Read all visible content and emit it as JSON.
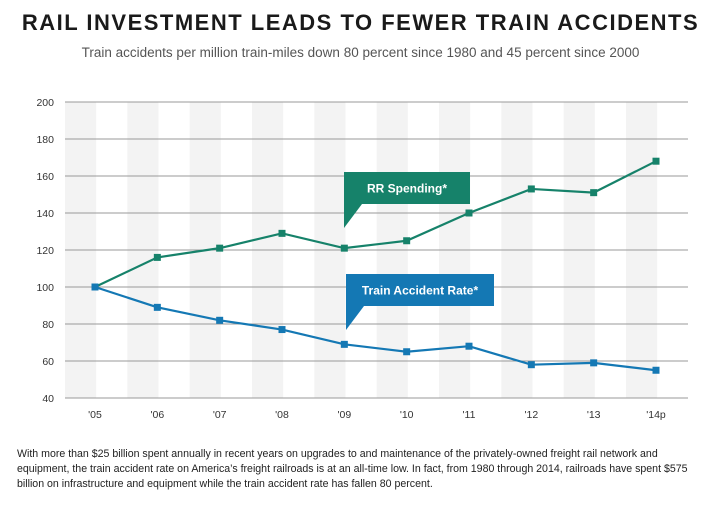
{
  "title": "RAIL INVESTMENT LEADS TO FEWER TRAIN ACCIDENTS",
  "subtitle": "Train accidents per million train-miles down 80 percent since 1980 and 45 percent since 2000",
  "footnote": "With more than $25 billion spent annually in recent years on upgrades to and maintenance of the privately-owned freight rail network and equipment, the train accident rate on America’s freight railroads is at an all-time low. In fact, from 1980 through 2014, railroads have spent $575 billion on infrastructure and equipment while the train accident rate has fallen 80 percent.",
  "chart_data": {
    "type": "line",
    "categories": [
      "'05",
      "'06",
      "'07",
      "'08",
      "'09",
      "'10",
      "'11",
      "'12",
      "'13",
      "'14p"
    ],
    "ylim": [
      40,
      200
    ],
    "yticks": [
      40,
      60,
      80,
      100,
      120,
      140,
      160,
      180,
      200
    ],
    "grid": true,
    "series": [
      {
        "name": "RR Spending*",
        "color": "#16826a",
        "values": [
          100,
          116,
          121,
          129,
          121,
          125,
          140,
          153,
          151,
          168
        ]
      },
      {
        "name": "Train Accident Rate*",
        "color": "#1478b4",
        "values": [
          100,
          89,
          82,
          77,
          69,
          65,
          68,
          58,
          59,
          55
        ]
      }
    ]
  }
}
